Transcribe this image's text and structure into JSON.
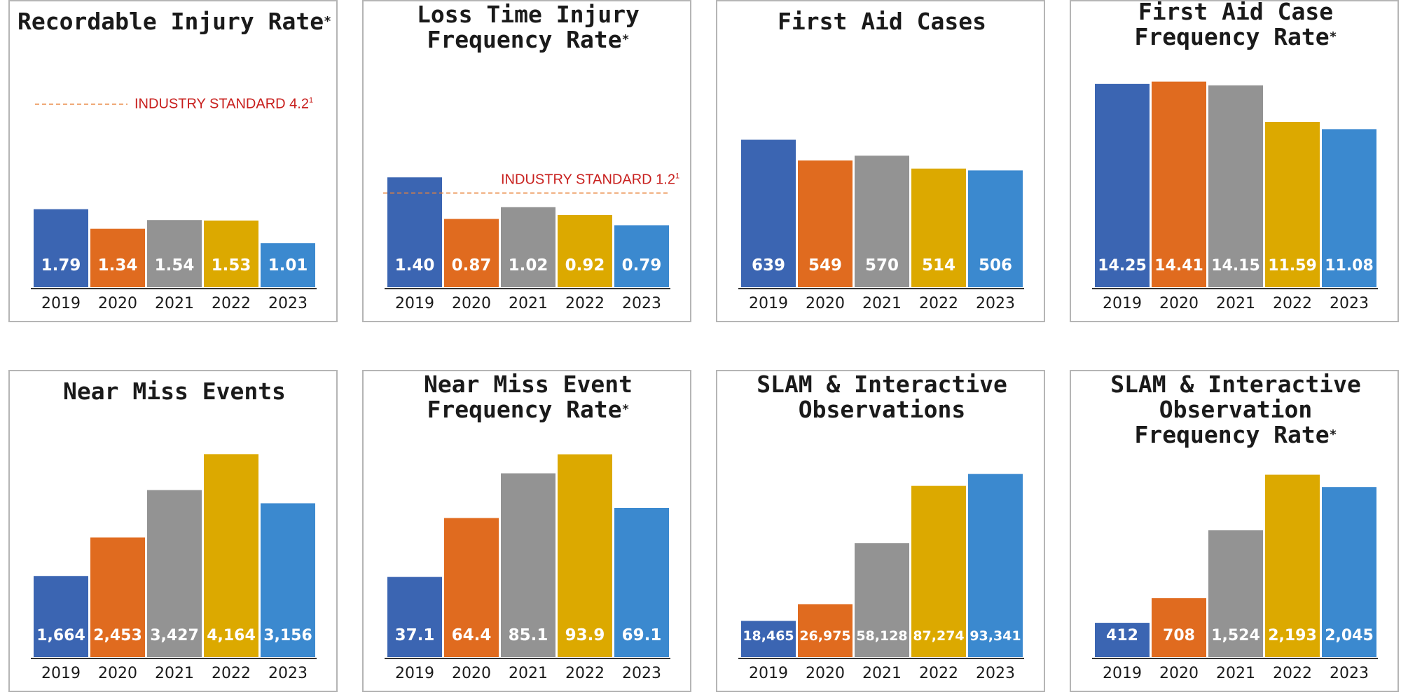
{
  "colors": {
    "2019": "#3b65b2",
    "2020": "#e06b1f",
    "2021": "#939393",
    "2022": "#dca900",
    "2023": "#3b89cf",
    "reference_line": "#e8823a",
    "reference_text": "#c8201e"
  },
  "chart_data": [
    {
      "type": "bar",
      "title_lines": [
        "Recordable Injury Rate"
      ],
      "title_mark": "*",
      "categories": [
        "2019",
        "2020",
        "2021",
        "2022",
        "2023"
      ],
      "values": [
        1.79,
        1.34,
        1.54,
        1.53,
        1.01
      ],
      "labels": [
        "1.79",
        "1.34",
        "1.54",
        "1.53",
        "1.01"
      ],
      "ylim": [
        0,
        5.4
      ],
      "reference": {
        "label": "INDUSTRY STANDARD 4.2",
        "footnote": "1",
        "value": 4.2,
        "line_position": "left",
        "text_position": "right"
      }
    },
    {
      "type": "bar",
      "title_lines": [
        "Loss Time Injury",
        "Frequency Rate"
      ],
      "title_mark": "*",
      "categories": [
        "2019",
        "2020",
        "2021",
        "2022",
        "2023"
      ],
      "values": [
        1.4,
        0.87,
        1.02,
        0.92,
        0.79
      ],
      "labels": [
        "1.40",
        "0.87",
        "1.02",
        "0.92",
        "0.79"
      ],
      "ylim": [
        0,
        3.0
      ],
      "reference": {
        "label": "INDUSTRY STANDARD 1.2",
        "footnote": "1",
        "value": 1.2,
        "line_position": "full",
        "text_position": "right"
      }
    },
    {
      "type": "bar",
      "title_lines": [
        "First Aid Cases"
      ],
      "title_mark": "",
      "categories": [
        "2019",
        "2020",
        "2021",
        "2022",
        "2023"
      ],
      "values": [
        639,
        549,
        570,
        514,
        506
      ],
      "labels": [
        "639",
        "549",
        "570",
        "514",
        "506"
      ],
      "ylim": [
        0,
        1020
      ]
    },
    {
      "type": "bar",
      "title_lines": [
        "First Aid Case",
        "Frequency Rate"
      ],
      "title_mark": "*",
      "categories": [
        "2019",
        "2020",
        "2021",
        "2022",
        "2023"
      ],
      "values": [
        14.25,
        14.41,
        14.15,
        11.59,
        11.08
      ],
      "labels": [
        "14.25",
        "14.41",
        "14.15",
        "11.59",
        "11.08"
      ],
      "ylim": [
        0,
        16.5
      ]
    },
    {
      "type": "bar",
      "title_lines": [
        "Near Miss Events"
      ],
      "title_mark": "",
      "categories": [
        "2019",
        "2020",
        "2021",
        "2022",
        "2023"
      ],
      "values": [
        1664,
        2453,
        3427,
        4164,
        3156
      ],
      "labels": [
        "1,664",
        "2,453",
        "3,427",
        "4,164",
        "3,156"
      ],
      "ylim": [
        0,
        4830
      ]
    },
    {
      "type": "bar",
      "title_lines": [
        "Near Miss Event",
        "Frequency Rate"
      ],
      "title_mark": "*",
      "categories": [
        "2019",
        "2020",
        "2021",
        "2022",
        "2023"
      ],
      "values": [
        37.1,
        64.4,
        85.1,
        93.9,
        69.1
      ],
      "labels": [
        "37.1",
        "64.4",
        "85.1",
        "93.9",
        "69.1"
      ],
      "ylim": [
        0,
        109
      ]
    },
    {
      "type": "bar",
      "title_lines": [
        "SLAM & Interactive",
        "Observations"
      ],
      "title_mark": "",
      "categories": [
        "2019",
        "2020",
        "2021",
        "2022",
        "2023"
      ],
      "values": [
        18465,
        26975,
        58128,
        87274,
        93341
      ],
      "labels": [
        "18,465",
        "26,975",
        "58,128",
        "87,274",
        "93,341"
      ],
      "ylim": [
        0,
        120000
      ]
    },
    {
      "type": "bar",
      "title_lines": [
        "SLAM & Interactive",
        "Observation",
        "Frequency Rate"
      ],
      "title_mark": "*",
      "categories": [
        "2019",
        "2020",
        "2021",
        "2022",
        "2023"
      ],
      "values": [
        412,
        708,
        1524,
        2193,
        2045
      ],
      "labels": [
        "412",
        "708",
        "1,524",
        "2,193",
        "2,045"
      ],
      "ylim": [
        0,
        2830
      ]
    }
  ]
}
